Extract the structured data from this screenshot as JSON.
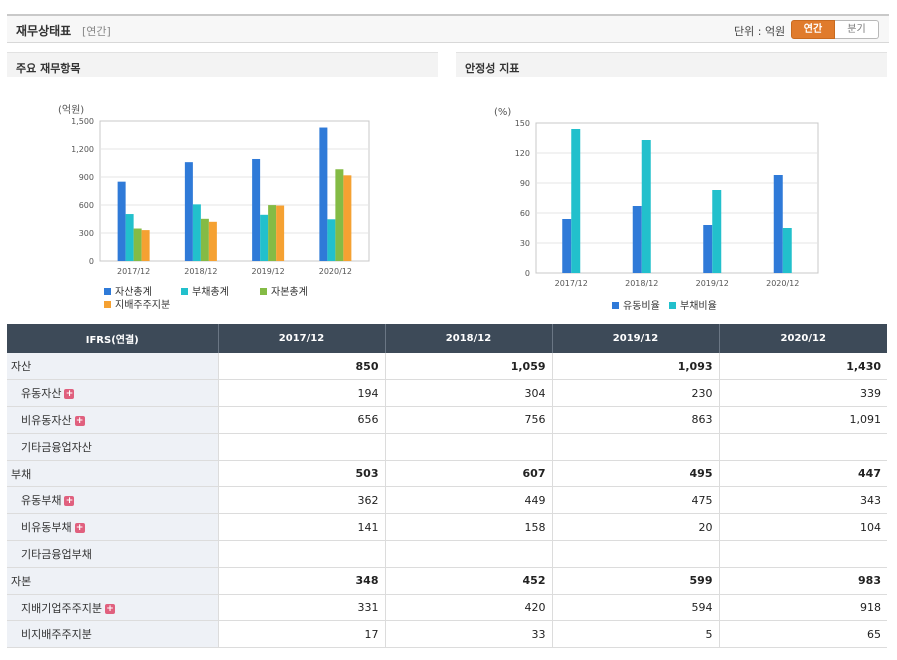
{
  "header": {
    "title": "재무상태표",
    "subtitle": "[연간]",
    "unit_label": "단위 : 억원",
    "toggle": [
      "연간",
      "분기"
    ]
  },
  "panels": {
    "left_title": "주요 재무항목",
    "right_title": "안정성 지표"
  },
  "chart_data": [
    {
      "type": "bar",
      "ylabel": "(억원)",
      "ylim": [
        0,
        1500
      ],
      "yticks": [
        0,
        300,
        600,
        900,
        1200,
        1500
      ],
      "ytick_labels": [
        "0",
        "300",
        "600",
        "900",
        "1,200",
        "1,500"
      ],
      "grid": true,
      "legend": "bottom",
      "categories": [
        "2017/12",
        "2018/12",
        "2019/12",
        "2020/12"
      ],
      "series": [
        {
          "name": "자산총계",
          "color": "#2f7ad8",
          "values": [
            850,
            1059,
            1093,
            1430
          ]
        },
        {
          "name": "부채총계",
          "color": "#22c0cc",
          "values": [
            503,
            607,
            495,
            447
          ]
        },
        {
          "name": "자본총계",
          "color": "#84bb45",
          "values": [
            348,
            452,
            599,
            983
          ]
        },
        {
          "name": "지배주주지분",
          "color": "#f5a132",
          "values": [
            331,
            420,
            594,
            918
          ]
        }
      ]
    },
    {
      "type": "bar",
      "ylabel": "(%)",
      "ylim": [
        0,
        150
      ],
      "yticks": [
        0,
        30,
        60,
        90,
        120,
        150
      ],
      "ytick_labels": [
        "0",
        "30",
        "60",
        "90",
        "120",
        "150"
      ],
      "grid": true,
      "legend": "bottom",
      "categories": [
        "2017/12",
        "2018/12",
        "2019/12",
        "2020/12"
      ],
      "series": [
        {
          "name": "유동비율",
          "color": "#2f7ad8",
          "values": [
            54,
            67,
            48,
            98
          ]
        },
        {
          "name": "부채비율",
          "color": "#22c0cc",
          "values": [
            144,
            133,
            83,
            45
          ]
        }
      ]
    }
  ],
  "table": {
    "header": [
      "IFRS(연결)",
      "2017/12",
      "2018/12",
      "2019/12",
      "2020/12"
    ],
    "rows": [
      {
        "label": "자산",
        "level": "main",
        "plus": false,
        "values": [
          "850",
          "1,059",
          "1,093",
          "1,430"
        ]
      },
      {
        "label": "유동자산",
        "level": "sub",
        "plus": true,
        "values": [
          "194",
          "304",
          "230",
          "339"
        ]
      },
      {
        "label": "비유동자산",
        "level": "sub",
        "plus": true,
        "values": [
          "656",
          "756",
          "863",
          "1,091"
        ]
      },
      {
        "label": "기타금융업자산",
        "level": "sub",
        "plus": false,
        "values": [
          "",
          "",
          "",
          ""
        ]
      },
      {
        "label": "부채",
        "level": "main",
        "plus": false,
        "values": [
          "503",
          "607",
          "495",
          "447"
        ]
      },
      {
        "label": "유동부채",
        "level": "sub",
        "plus": true,
        "values": [
          "362",
          "449",
          "475",
          "343"
        ]
      },
      {
        "label": "비유동부채",
        "level": "sub",
        "plus": true,
        "values": [
          "141",
          "158",
          "20",
          "104"
        ]
      },
      {
        "label": "기타금융업부채",
        "level": "sub",
        "plus": false,
        "values": [
          "",
          "",
          "",
          ""
        ]
      },
      {
        "label": "자본",
        "level": "main",
        "plus": false,
        "values": [
          "348",
          "452",
          "599",
          "983"
        ]
      },
      {
        "label": "지배기업주주지분",
        "level": "sub",
        "plus": true,
        "values": [
          "331",
          "420",
          "594",
          "918"
        ]
      },
      {
        "label": "비지배주주지분",
        "level": "sub",
        "plus": false,
        "values": [
          "17",
          "33",
          "5",
          "65"
        ]
      }
    ]
  }
}
